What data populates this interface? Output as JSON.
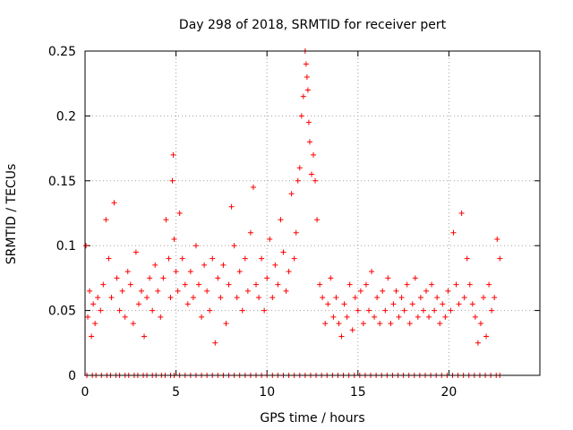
{
  "chart_data": {
    "type": "scatter",
    "title": "Day 298 of 2018, SRMTID for receiver pert",
    "xlabel": "GPS time / hours",
    "ylabel": "SRMTID / TECUs",
    "xlim": [
      0,
      25
    ],
    "ylim": [
      0,
      0.25
    ],
    "x_ticks": [
      0,
      5,
      10,
      15,
      20
    ],
    "x_tick_labels": [
      "0",
      "5",
      "10",
      "15",
      "20"
    ],
    "y_ticks": [
      0,
      0.05,
      0.1,
      0.15,
      0.2,
      0.25
    ],
    "y_tick_labels": [
      "0",
      "0.05",
      "0.1",
      "0.15",
      "0.2",
      "0.25"
    ],
    "grid": true,
    "marker": "+",
    "color": "#ff0000",
    "series": [
      {
        "name": "SRMTID",
        "x": [
          0.05,
          0.15,
          0.25,
          0.35,
          0.45,
          0.55,
          0.7,
          0.85,
          1.0,
          1.15,
          1.3,
          1.45,
          1.6,
          1.75,
          1.9,
          2.05,
          2.2,
          2.35,
          2.5,
          2.65,
          2.8,
          2.95,
          3.1,
          3.25,
          3.4,
          3.55,
          3.7,
          3.85,
          4.0,
          4.15,
          4.3,
          4.45,
          4.6,
          4.7,
          4.8,
          4.85,
          4.9,
          5.0,
          5.1,
          5.2,
          5.35,
          5.5,
          5.65,
          5.8,
          5.95,
          6.1,
          6.25,
          6.4,
          6.55,
          6.7,
          6.85,
          7.0,
          7.15,
          7.3,
          7.45,
          7.6,
          7.75,
          7.9,
          8.05,
          8.2,
          8.35,
          8.5,
          8.65,
          8.8,
          8.95,
          9.1,
          9.25,
          9.4,
          9.55,
          9.7,
          9.85,
          10.0,
          10.15,
          10.3,
          10.45,
          10.6,
          10.75,
          10.9,
          11.05,
          11.2,
          11.35,
          11.5,
          11.6,
          11.7,
          11.8,
          11.9,
          12.0,
          12.1,
          12.15,
          12.2,
          12.25,
          12.3,
          12.35,
          12.45,
          12.55,
          12.65,
          12.75,
          12.9,
          13.05,
          13.2,
          13.35,
          13.5,
          13.65,
          13.8,
          13.95,
          14.1,
          14.25,
          14.4,
          14.55,
          14.7,
          14.85,
          15.0,
          15.15,
          15.3,
          15.45,
          15.6,
          15.75,
          15.9,
          16.05,
          16.2,
          16.35,
          16.5,
          16.65,
          16.8,
          16.95,
          17.1,
          17.25,
          17.4,
          17.55,
          17.7,
          17.85,
          18.0,
          18.15,
          18.3,
          18.45,
          18.6,
          18.75,
          18.9,
          19.05,
          19.2,
          19.35,
          19.5,
          19.65,
          19.8,
          19.95,
          20.1,
          20.25,
          20.4,
          20.55,
          20.7,
          20.85,
          21.0,
          21.15,
          21.3,
          21.45,
          21.6,
          21.75,
          21.9,
          22.05,
          22.2,
          22.35,
          22.5,
          22.65,
          22.8
        ],
        "y": [
          0.1,
          0.045,
          0.065,
          0.03,
          0.055,
          0.04,
          0.06,
          0.05,
          0.07,
          0.12,
          0.09,
          0.06,
          0.133,
          0.075,
          0.05,
          0.065,
          0.045,
          0.08,
          0.07,
          0.04,
          0.095,
          0.055,
          0.065,
          0.03,
          0.06,
          0.075,
          0.05,
          0.085,
          0.065,
          0.045,
          0.075,
          0.12,
          0.09,
          0.06,
          0.15,
          0.17,
          0.105,
          0.08,
          0.065,
          0.125,
          0.09,
          0.07,
          0.055,
          0.08,
          0.06,
          0.1,
          0.07,
          0.045,
          0.085,
          0.065,
          0.05,
          0.09,
          0.025,
          0.075,
          0.06,
          0.085,
          0.04,
          0.07,
          0.13,
          0.1,
          0.06,
          0.08,
          0.05,
          0.09,
          0.065,
          0.11,
          0.145,
          0.07,
          0.06,
          0.09,
          0.05,
          0.075,
          0.105,
          0.06,
          0.085,
          0.07,
          0.12,
          0.095,
          0.065,
          0.08,
          0.14,
          0.09,
          0.11,
          0.15,
          0.16,
          0.2,
          0.215,
          0.25,
          0.24,
          0.23,
          0.22,
          0.195,
          0.18,
          0.155,
          0.17,
          0.15,
          0.12,
          0.07,
          0.06,
          0.04,
          0.055,
          0.075,
          0.045,
          0.06,
          0.04,
          0.03,
          0.055,
          0.045,
          0.07,
          0.035,
          0.06,
          0.05,
          0.065,
          0.04,
          0.07,
          0.05,
          0.08,
          0.045,
          0.06,
          0.04,
          0.065,
          0.05,
          0.075,
          0.04,
          0.055,
          0.065,
          0.045,
          0.06,
          0.05,
          0.07,
          0.04,
          0.055,
          0.075,
          0.045,
          0.06,
          0.05,
          0.065,
          0.045,
          0.07,
          0.05,
          0.06,
          0.04,
          0.055,
          0.045,
          0.065,
          0.05,
          0.11,
          0.07,
          0.055,
          0.125,
          0.06,
          0.09,
          0.07,
          0.055,
          0.045,
          0.025,
          0.04,
          0.06,
          0.03,
          0.07,
          0.05,
          0.06,
          0.105,
          0.09
        ],
        "zero_x": [
          0.1,
          0.4,
          0.6,
          0.9,
          1.2,
          1.4,
          1.7,
          1.9,
          2.2,
          2.4,
          2.7,
          2.9,
          3.2,
          3.4,
          3.7,
          3.9,
          4.2,
          4.4,
          4.7,
          4.9,
          5.2,
          5.5,
          5.8,
          6.1,
          6.4,
          6.7,
          7.0,
          7.3,
          7.6,
          7.9,
          8.2,
          8.5,
          8.8,
          9.1,
          9.4,
          9.7,
          10.0,
          10.3,
          10.6,
          10.9,
          11.2,
          11.5,
          11.8,
          12.1,
          12.4,
          12.7,
          13.0,
          13.3,
          13.6,
          13.9,
          14.2,
          14.5,
          14.8,
          15.1,
          15.4,
          15.7,
          16.0,
          16.3,
          16.6,
          16.9,
          17.2,
          17.5,
          17.8,
          18.1,
          18.4,
          18.7,
          19.0,
          19.3,
          19.6,
          19.9,
          20.2,
          20.5,
          20.8,
          21.1,
          21.4,
          21.7,
          22.0,
          22.3,
          22.6,
          22.8
        ]
      }
    ]
  }
}
